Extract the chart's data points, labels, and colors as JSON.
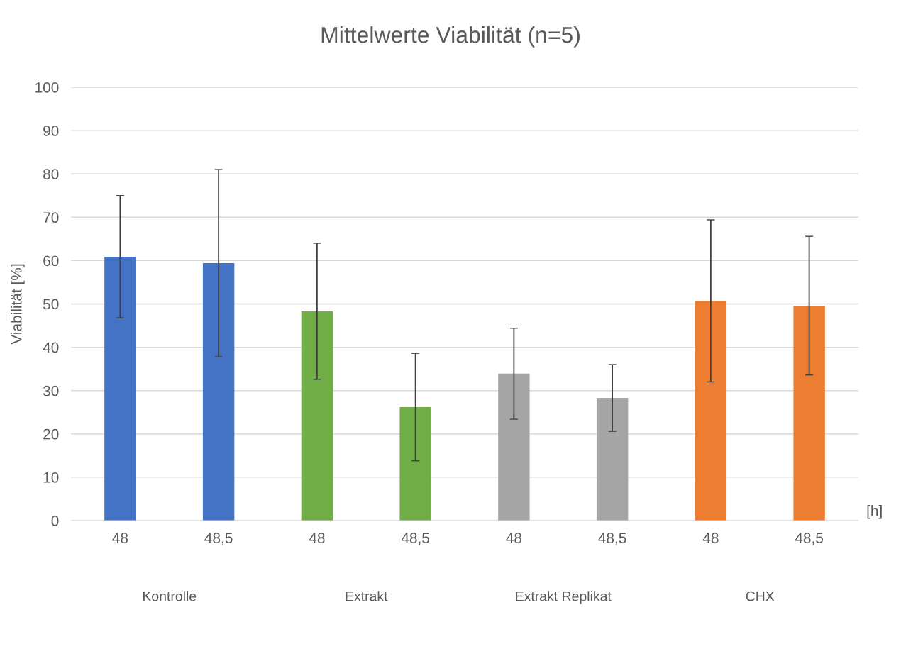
{
  "chart_data": {
    "type": "bar",
    "title": "Mittelwerte Viabilität (n=5)",
    "ylabel": "Viabilität [%]",
    "xlabel": "[h]",
    "categories": [
      "48",
      "48,5",
      "48",
      "48,5",
      "48",
      "48,5",
      "48",
      "48,5"
    ],
    "values": [
      60.9,
      59.4,
      48.3,
      26.2,
      33.9,
      28.3,
      50.7,
      49.6
    ],
    "errors": [
      14.1,
      21.6,
      15.7,
      12.4,
      10.5,
      7.7,
      18.7,
      16.0
    ],
    "colors": [
      "#4472c4",
      "#4472c4",
      "#70ad47",
      "#70ad47",
      "#a5a5a5",
      "#a5a5a5",
      "#ed7d31",
      "#ed7d31"
    ],
    "annotations": [
      "Kontrolle",
      "Extrakt",
      "Extrakt Replikat",
      "CHX"
    ],
    "ylim": [
      0,
      100
    ],
    "yticks": [
      0,
      10,
      20,
      30,
      40,
      50,
      60,
      70,
      80,
      90,
      100
    ],
    "grid": "y",
    "legend": false
  }
}
